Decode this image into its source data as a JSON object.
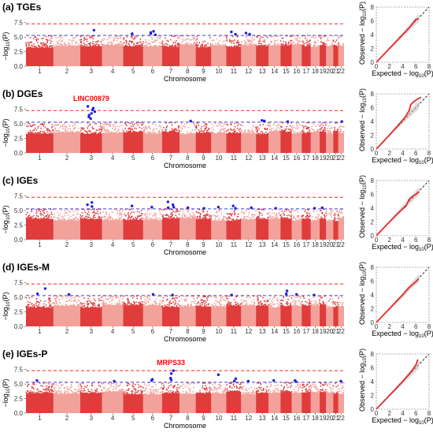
{
  "figure": {
    "xlabel": "Chromosome",
    "ylabel_main": "−log",
    "ylabel_sub": "10",
    "ylabel_tail": "(P)",
    "qq_xlabel_main": "Expected − log",
    "qq_ylabel_main": "Observed − log",
    "qq_sub": "10",
    "qq_tail": "(P)"
  },
  "chart_data": [
    {
      "type": "scatter",
      "subtype": "manhattan",
      "title": "(a) TGEs",
      "xlabel": "Chromosome",
      "ylabel": "−log10(P)",
      "ylim": [
        0,
        8
      ],
      "yticks": [
        "0.0",
        "2.5",
        "5.0",
        "7.5"
      ],
      "chromosome_labels": [
        "1",
        "2",
        "3",
        "4",
        "5",
        "6",
        "7",
        "8",
        "9",
        "10",
        "11",
        "12",
        "13",
        "14",
        "15",
        "16",
        "17",
        "18",
        "19",
        "20",
        "21",
        "22"
      ],
      "thresholds": {
        "genome_wide": 7.3,
        "suggestive": 5.3
      },
      "colors": {
        "odd": "#e03c3c",
        "even": "#f2a29a",
        "significant": "#1f1fe0",
        "genome_wide_line": "#ff0000",
        "suggestive_line": "#1f1fe0"
      },
      "significant_points": [
        [
          3,
          6.2
        ],
        [
          5,
          5.6
        ],
        [
          6,
          5.6
        ],
        [
          6,
          5.4
        ],
        [
          6,
          6.0
        ],
        [
          6,
          5.8
        ],
        [
          11,
          5.9
        ],
        [
          11,
          5.5
        ],
        [
          12,
          5.7
        ],
        [
          12,
          5.5
        ]
      ],
      "annotation": ""
    },
    {
      "type": "scatter",
      "subtype": "manhattan",
      "title": "(b) DGEs",
      "xlabel": "Chromosome",
      "ylabel": "−log10(P)",
      "ylim": [
        0,
        8
      ],
      "yticks": [
        "0.0",
        "2.5",
        "5.0",
        "7.5"
      ],
      "chromosome_labels": [
        "1",
        "2",
        "3",
        "4",
        "5",
        "6",
        "7",
        "8",
        "9",
        "10",
        "11",
        "12",
        "13",
        "14",
        "15",
        "16",
        "17",
        "18",
        "19",
        "20",
        "21",
        "22"
      ],
      "thresholds": {
        "genome_wide": 7.3,
        "suggestive": 5.3
      },
      "colors": {
        "odd": "#e03c3c",
        "even": "#f2a29a",
        "significant": "#1f1fe0",
        "genome_wide_line": "#ff0000",
        "suggestive_line": "#1f1fe0"
      },
      "significant_points": [
        [
          3,
          8.0
        ],
        [
          3,
          7.7
        ],
        [
          3,
          7.4
        ],
        [
          3,
          7.1
        ],
        [
          3,
          6.8
        ],
        [
          3,
          6.5
        ],
        [
          3,
          6.2
        ],
        [
          3,
          5.9
        ],
        [
          8,
          5.5
        ],
        [
          13,
          5.6
        ],
        [
          13,
          5.5
        ],
        [
          15,
          5.4
        ],
        [
          22,
          5.4
        ]
      ],
      "annotation": "LINC00879"
    },
    {
      "type": "scatter",
      "subtype": "manhattan",
      "title": "(c) IGEs",
      "xlabel": "Chromosome",
      "ylabel": "−log10(P)",
      "ylim": [
        0,
        8
      ],
      "yticks": [
        "0.0",
        "2.5",
        "5.0",
        "7.5"
      ],
      "chromosome_labels": [
        "1",
        "2",
        "3",
        "4",
        "5",
        "6",
        "7",
        "8",
        "9",
        "10",
        "11",
        "12",
        "13",
        "14",
        "15",
        "16",
        "17",
        "18",
        "19",
        "20",
        "21",
        "22"
      ],
      "thresholds": {
        "genome_wide": 7.3,
        "suggestive": 5.3
      },
      "colors": {
        "odd": "#e03c3c",
        "even": "#f2a29a",
        "significant": "#1f1fe0",
        "genome_wide_line": "#ff0000",
        "suggestive_line": "#1f1fe0"
      },
      "significant_points": [
        [
          3,
          6.4
        ],
        [
          3,
          6.0
        ],
        [
          3,
          5.7
        ],
        [
          5,
          5.8
        ],
        [
          6,
          5.6
        ],
        [
          7,
          6.5
        ],
        [
          7,
          6.0
        ],
        [
          7,
          5.6
        ],
        [
          7,
          5.5
        ],
        [
          8,
          5.5
        ],
        [
          9,
          5.4
        ],
        [
          10,
          5.6
        ],
        [
          11,
          5.8
        ],
        [
          11,
          5.4
        ],
        [
          12,
          5.5
        ],
        [
          14,
          5.4
        ],
        [
          18,
          5.4
        ],
        [
          19,
          5.5
        ]
      ],
      "annotation": ""
    },
    {
      "type": "scatter",
      "subtype": "manhattan",
      "title": "(d) IGEs-M",
      "xlabel": "Chromosome",
      "ylabel": "−log10(P)",
      "ylim": [
        0,
        8
      ],
      "yticks": [
        "0.0",
        "2.5",
        "5.0",
        "7.5"
      ],
      "chromosome_labels": [
        "1",
        "2",
        "3",
        "4",
        "5",
        "6",
        "7",
        "8",
        "9",
        "10",
        "11",
        "12",
        "13",
        "14",
        "15",
        "16",
        "17",
        "18",
        "19",
        "20",
        "21",
        "22"
      ],
      "thresholds": {
        "genome_wide": 7.3,
        "suggestive": 5.3
      },
      "colors": {
        "odd": "#e03c3c",
        "even": "#f2a29a",
        "significant": "#1f1fe0",
        "genome_wide_line": "#ff0000",
        "suggestive_line": "#1f1fe0"
      },
      "significant_points": [
        [
          1,
          6.5
        ],
        [
          1,
          5.6
        ],
        [
          2,
          5.5
        ],
        [
          6,
          5.5
        ],
        [
          7,
          5.4
        ],
        [
          11,
          5.4
        ],
        [
          15,
          6.1
        ],
        [
          15,
          5.6
        ],
        [
          16,
          5.5
        ],
        [
          18,
          5.4
        ]
      ],
      "annotation": ""
    },
    {
      "type": "scatter",
      "subtype": "manhattan",
      "title": "(e) IGEs-P",
      "xlabel": "Chromosome",
      "ylabel": "−log10(P)",
      "ylim": [
        0,
        8
      ],
      "yticks": [
        "0.0",
        "2.5",
        "5.0",
        "7.5"
      ],
      "chromosome_labels": [
        "1",
        "2",
        "3",
        "4",
        "5",
        "6",
        "7",
        "8",
        "9",
        "10",
        "11",
        "12",
        "13",
        "14",
        "15",
        "16",
        "17",
        "18",
        "19",
        "20",
        "21",
        "22"
      ],
      "thresholds": {
        "genome_wide": 7.3,
        "suggestive": 5.3
      },
      "colors": {
        "odd": "#e03c3c",
        "even": "#f2a29a",
        "significant": "#1f1fe0",
        "genome_wide_line": "#ff0000",
        "suggestive_line": "#1f1fe0"
      },
      "significant_points": [
        [
          1,
          5.6
        ],
        [
          4,
          5.5
        ],
        [
          6,
          5.6
        ],
        [
          6,
          5.8
        ],
        [
          7,
          7.3
        ],
        [
          7,
          6.8
        ],
        [
          7,
          6.0
        ],
        [
          7,
          5.7
        ],
        [
          10,
          6.6
        ],
        [
          11,
          5.9
        ],
        [
          11,
          5.5
        ],
        [
          12,
          5.5
        ],
        [
          14,
          5.6
        ],
        [
          16,
          5.6
        ],
        [
          16,
          5.4
        ],
        [
          22,
          5.5
        ]
      ],
      "annotation": "MRPS33"
    },
    {
      "type": "scatter",
      "subtype": "qq",
      "title": "",
      "xlabel": "Expected −log10(P)",
      "ylabel": "Observed −log10(P)",
      "xlim": [
        0,
        8
      ],
      "ylim": [
        0,
        8
      ],
      "ticks": [
        "0",
        "2",
        "4",
        "6",
        "8"
      ],
      "observed": [
        [
          0,
          0
        ],
        [
          1,
          1
        ],
        [
          2,
          2
        ],
        [
          3,
          3
        ],
        [
          4,
          4
        ],
        [
          5,
          5.0
        ],
        [
          5.5,
          5.6
        ],
        [
          6.0,
          6.2
        ],
        [
          6.4,
          6.3
        ]
      ]
    },
    {
      "type": "scatter",
      "subtype": "qq",
      "title": "",
      "xlabel": "Expected −log10(P)",
      "ylabel": "Observed −log10(P)",
      "xlim": [
        0,
        8
      ],
      "ylim": [
        0,
        8
      ],
      "ticks": [
        "0",
        "2",
        "4",
        "6",
        "8"
      ],
      "observed": [
        [
          0,
          0
        ],
        [
          1,
          1
        ],
        [
          2,
          2.05
        ],
        [
          3,
          3.1
        ],
        [
          4,
          4.2
        ],
        [
          4.5,
          4.8
        ],
        [
          5,
          5.6
        ],
        [
          5.2,
          6.4
        ],
        [
          5.6,
          6.8
        ],
        [
          6.2,
          7.2
        ],
        [
          6.8,
          7.5
        ]
      ]
    },
    {
      "type": "scatter",
      "subtype": "qq",
      "title": "",
      "xlabel": "Expected −log10(P)",
      "ylabel": "Observed −log10(P)",
      "xlim": [
        0,
        8
      ],
      "ylim": [
        0,
        8
      ],
      "ticks": [
        "0",
        "2",
        "4",
        "6",
        "8"
      ],
      "observed": [
        [
          0,
          0
        ],
        [
          1,
          1
        ],
        [
          2,
          2
        ],
        [
          3,
          3
        ],
        [
          4,
          3.9
        ],
        [
          4.5,
          4.3
        ],
        [
          5,
          5.3
        ],
        [
          5.5,
          5.7
        ],
        [
          6.0,
          6.0
        ],
        [
          6.5,
          6.4
        ]
      ]
    },
    {
      "type": "scatter",
      "subtype": "qq",
      "title": "",
      "xlabel": "Expected −log10(P)",
      "ylabel": "Observed −log10(P)",
      "xlim": [
        0,
        8
      ],
      "ylim": [
        0,
        8
      ],
      "ticks": [
        "0",
        "2",
        "4",
        "6",
        "8"
      ],
      "observed": [
        [
          0,
          0
        ],
        [
          1,
          1
        ],
        [
          2,
          2
        ],
        [
          3,
          3
        ],
        [
          4,
          4
        ],
        [
          5,
          5.1
        ],
        [
          5.5,
          5.5
        ],
        [
          6.0,
          5.9
        ],
        [
          6.4,
          6.3
        ]
      ]
    },
    {
      "type": "scatter",
      "subtype": "qq",
      "title": "",
      "xlabel": "Expected −log10(P)",
      "ylabel": "Observed −log10(P)",
      "xlim": [
        0,
        8
      ],
      "ylim": [
        0,
        8
      ],
      "ticks": [
        "0",
        "2",
        "4",
        "6",
        "8"
      ],
      "observed": [
        [
          0,
          0
        ],
        [
          1,
          1
        ],
        [
          2,
          2
        ],
        [
          3,
          3
        ],
        [
          4,
          4
        ],
        [
          5,
          5.1
        ],
        [
          5.5,
          5.7
        ],
        [
          6.0,
          6.4
        ],
        [
          6.3,
          7.2
        ]
      ]
    }
  ]
}
